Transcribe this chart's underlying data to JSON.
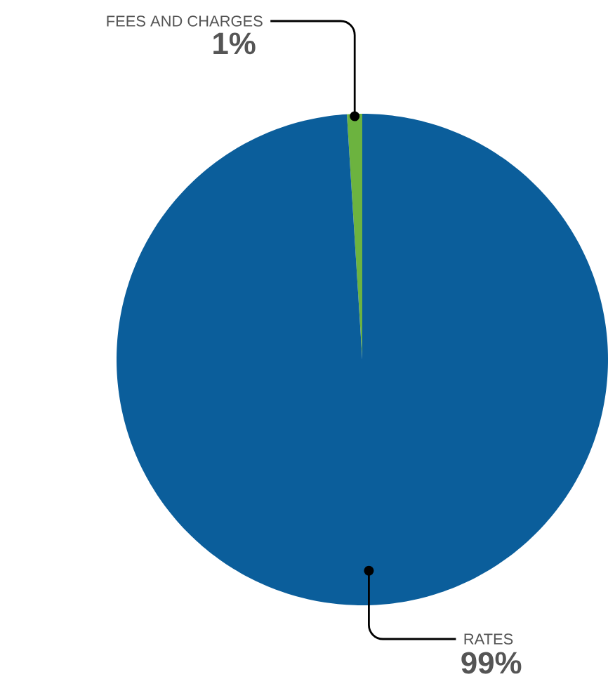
{
  "chart_data": {
    "type": "pie",
    "categories": [
      "FEES AND CHARGES",
      "RATES"
    ],
    "values": [
      1,
      99
    ],
    "colors": [
      "#6cb33f",
      "#0b5e9b"
    ],
    "value_labels": [
      "1%",
      "99%"
    ]
  }
}
